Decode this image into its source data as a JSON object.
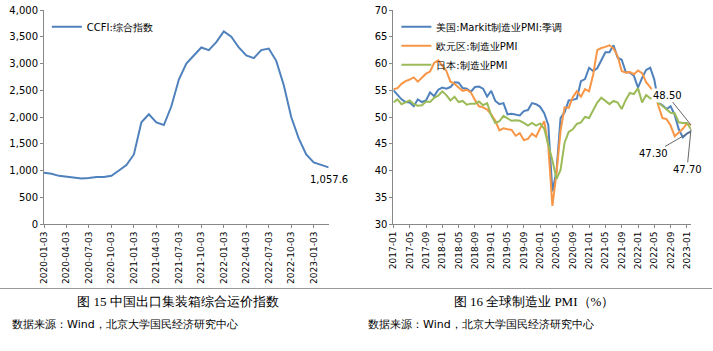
{
  "chart_data": [
    {
      "type": "line",
      "title": "图 15 中国出口集装箱综合运价指数",
      "source": "数据来源：Wind，北京大学国民经济研究中心",
      "categories": [
        "2020-01-03",
        null,
        null,
        "2020-04-03",
        null,
        null,
        "2020-07-03",
        null,
        null,
        "2020-10-03",
        null,
        null,
        "2021-01-03",
        null,
        null,
        "2021-04-03",
        null,
        null,
        "2021-07-03",
        null,
        null,
        "2021-10-03",
        null,
        null,
        "2022-01-03",
        null,
        null,
        "2022-04-03",
        null,
        null,
        "2022-07-03",
        null,
        null,
        "2022-10-03",
        null,
        null,
        "2023-01-03",
        null,
        null
      ],
      "series": [
        {
          "name": "CCFI:综合指数",
          "color": "#4f81bd",
          "values": [
            960,
            940,
            900,
            880,
            870,
            850,
            860,
            880,
            880,
            900,
            1000,
            1100,
            1300,
            1900,
            2050,
            1900,
            1850,
            2200,
            2700,
            3000,
            3150,
            3300,
            3250,
            3400,
            3600,
            3500,
            3300,
            3150,
            3100,
            3250,
            3280,
            3050,
            2600,
            2000,
            1600,
            1300,
            1150,
            1100,
            1057.6
          ]
        }
      ],
      "ylim": [
        0,
        4000
      ],
      "yticks": [
        0,
        500,
        {
          "value": 1000,
          "label": "1,000"
        },
        {
          "value": 1500,
          "label": "1,500"
        },
        {
          "value": 2000,
          "label": "2,000"
        },
        {
          "value": 2500,
          "label": "2,500"
        },
        {
          "value": 3000,
          "label": "3,000"
        },
        {
          "value": 3500,
          "label": "3,500"
        },
        {
          "value": 4000,
          "label": "4,000"
        }
      ],
      "annotations": [
        {
          "x": 38,
          "y": 1057.6,
          "text": "1,057.6"
        }
      ],
      "grid": false,
      "legend": "upper left"
    },
    {
      "type": "line",
      "title": "图 16 全球制造业 PMI（%）",
      "source": "数据来源：Wind，北京大学国民经济研究中心",
      "categories": [
        "2017-01",
        null,
        null,
        null,
        "2017-05",
        null,
        null,
        null,
        "2017-09",
        null,
        null,
        null,
        "2018-01",
        null,
        null,
        null,
        "2018-05",
        null,
        null,
        null,
        "2018-09",
        null,
        null,
        null,
        "2019-01",
        null,
        null,
        null,
        "2019-05",
        null,
        null,
        null,
        "2019-09",
        null,
        null,
        null,
        "2020-01",
        null,
        null,
        null,
        "2020-05",
        null,
        null,
        null,
        "2020-09",
        null,
        null,
        null,
        "2021-01",
        null,
        null,
        null,
        "2021-05",
        null,
        null,
        null,
        "2021-09",
        null,
        null,
        null,
        "2022-01",
        null,
        null,
        null,
        "2022-05",
        null,
        null,
        null,
        "2022-09",
        null,
        null,
        null,
        "2023-01",
        null
      ],
      "series": [
        {
          "name": "美国:Markit制造业PMI:季调",
          "color": "#4f81bd",
          "values": [
            55.0,
            54.2,
            53.3,
            52.8,
            52.7,
            52.0,
            53.3,
            52.8,
            53.1,
            54.6,
            53.9,
            55.1,
            55.5,
            55.3,
            55.6,
            56.5,
            56.4,
            55.4,
            55.3,
            54.7,
            55.6,
            55.7,
            55.3,
            53.8,
            54.9,
            53.0,
            52.4,
            52.6,
            50.5,
            50.6,
            50.4,
            50.3,
            51.1,
            51.3,
            52.6,
            52.4,
            51.9,
            50.7,
            48.5,
            36.1,
            39.8,
            49.8,
            50.9,
            53.1,
            53.2,
            53.4,
            56.7,
            57.1,
            59.2,
            58.6,
            59.1,
            60.5,
            62.1,
            62.1,
            63.4,
            61.1,
            60.7,
            58.4,
            58.3,
            57.7,
            55.5,
            57.3,
            58.8,
            59.2,
            57.0,
            52.7,
            52.2,
            51.5,
            52.0,
            50.4,
            47.7,
            46.2,
            46.9,
            47.3
          ]
        },
        {
          "name": "欧元区:制造业PMI",
          "color": "#f79646",
          "values": [
            55.2,
            55.4,
            56.2,
            56.7,
            57.0,
            57.4,
            56.6,
            57.4,
            58.1,
            58.5,
            60.1,
            60.6,
            59.6,
            58.6,
            56.6,
            56.2,
            55.5,
            54.9,
            55.1,
            54.6,
            53.2,
            52.0,
            51.8,
            51.4,
            50.5,
            49.3,
            47.5,
            47.9,
            47.7,
            47.6,
            46.5,
            47.0,
            45.7,
            45.9,
            46.9,
            46.3,
            47.9,
            49.2,
            44.5,
            33.4,
            39.4,
            47.4,
            51.8,
            51.7,
            53.7,
            54.8,
            53.8,
            55.2,
            54.8,
            57.9,
            62.5,
            62.9,
            63.1,
            63.4,
            62.8,
            61.4,
            58.6,
            58.3,
            58.4,
            58.0,
            58.7,
            58.2,
            56.5,
            55.5,
            54.6,
            52.1,
            49.8,
            49.6,
            48.4,
            46.4,
            47.1,
            47.8,
            48.8,
            48.5
          ]
        },
        {
          "name": "日本:制造业PMI",
          "color": "#9bbb59",
          "values": [
            52.7,
            53.3,
            52.4,
            52.7,
            53.1,
            52.4,
            52.1,
            52.2,
            52.9,
            52.8,
            53.6,
            54.0,
            54.8,
            54.1,
            53.1,
            53.8,
            52.8,
            53.0,
            52.3,
            52.5,
            52.5,
            52.9,
            52.2,
            52.6,
            50.3,
            48.9,
            49.2,
            50.2,
            49.8,
            49.3,
            49.4,
            49.3,
            48.9,
            48.4,
            48.9,
            48.4,
            48.8,
            47.8,
            44.8,
            41.9,
            38.4,
            40.1,
            45.2,
            47.2,
            47.7,
            48.7,
            49.0,
            50.0,
            49.8,
            51.4,
            52.7,
            53.6,
            53.0,
            52.4,
            53.0,
            52.7,
            51.5,
            53.2,
            54.5,
            54.3,
            55.4,
            52.7,
            54.1,
            53.5,
            53.3,
            52.7,
            52.1,
            51.5,
            50.8,
            50.7,
            49.0,
            48.9,
            48.9,
            47.7
          ]
        }
      ],
      "ylim": [
        30,
        70
      ],
      "yticks": [
        30,
        35,
        40,
        45,
        50,
        55,
        60,
        65,
        70
      ],
      "annotations": [
        {
          "x": 73,
          "y": 48.5,
          "text": "48.50"
        },
        {
          "x": 73,
          "y": 47.3,
          "text": "47.30"
        },
        {
          "x": 73,
          "y": 47.7,
          "text": "47.70"
        }
      ],
      "grid": false,
      "legend": "upper left"
    }
  ]
}
